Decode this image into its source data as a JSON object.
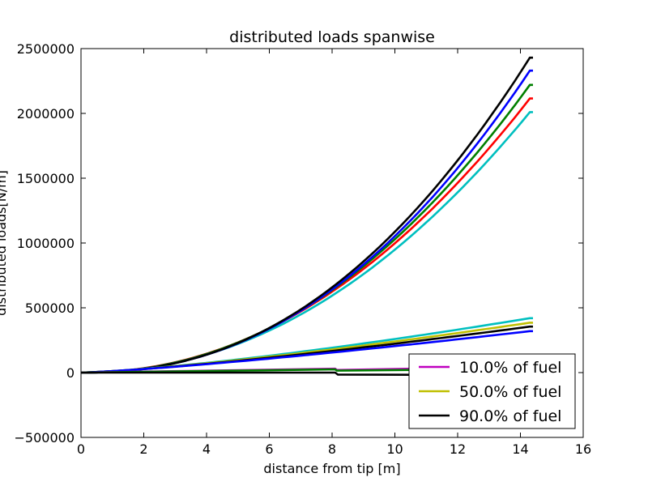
{
  "chart_data": {
    "type": "line",
    "title": "distributed loads spanwise",
    "xlabel": "distance from tip [m]",
    "ylabel": "distributed loads[N/m]",
    "xlim": [
      0,
      16
    ],
    "ylim": [
      -500000,
      2500000
    ],
    "xticks": [
      "0",
      "2",
      "4",
      "6",
      "8",
      "10",
      "12",
      "14",
      "16"
    ],
    "yticks": [
      "−500000",
      "0",
      "500000",
      "1000000",
      "1500000",
      "2000000",
      "2500000"
    ],
    "xtick_values": [
      0,
      2,
      4,
      6,
      8,
      10,
      12,
      14,
      16
    ],
    "ytick_values": [
      -500000,
      0,
      500000,
      1000000,
      1500000,
      2000000,
      2500000
    ],
    "legend_position": "lower-right",
    "series": [
      {
        "color": "#00bfbf",
        "kind": "quad",
        "end": 2010000,
        "p": 2.1
      },
      {
        "color": "#ff0000",
        "kind": "quad",
        "end": 2115000,
        "p": 2.1
      },
      {
        "color": "#007f00",
        "kind": "quad",
        "end": 2220000,
        "p": 2.15
      },
      {
        "color": "#0000ff",
        "kind": "quad",
        "end": 2330000,
        "p": 2.22
      },
      {
        "color": "#000000",
        "kind": "quad",
        "end": 2430000,
        "p": 2.25
      },
      {
        "color": "#00bfbf",
        "kind": "lin",
        "end": 420000,
        "p": 1.35
      },
      {
        "color": "#bfbf00",
        "kind": "lin",
        "end": 385000,
        "p": 1.32
      },
      {
        "color": "#000000",
        "kind": "lin",
        "end": 355000,
        "p": 1.3
      },
      {
        "color": "#0000ff",
        "kind": "lin",
        "end": 320000,
        "p": 1.25
      },
      {
        "color": "#bf00bf",
        "kind": "flat",
        "values": [
          [
            0,
            0
          ],
          [
            8.1,
            30000
          ],
          [
            8.15,
            20000
          ],
          [
            14.3,
            45000
          ]
        ]
      },
      {
        "color": "#007f00",
        "kind": "flat",
        "values": [
          [
            0,
            0
          ],
          [
            8.1,
            25000
          ],
          [
            8.15,
            15000
          ],
          [
            14.3,
            30000
          ]
        ]
      },
      {
        "color": "#000000",
        "kind": "flat",
        "values": [
          [
            0,
            0
          ],
          [
            8.1,
            0
          ],
          [
            8.18,
            -15000
          ],
          [
            14.3,
            -20000
          ]
        ]
      }
    ],
    "legend": [
      {
        "label": "10.0% of fuel",
        "color": "#bf00bf"
      },
      {
        "label": "50.0% of fuel",
        "color": "#bfbf00"
      },
      {
        "label": "90.0% of fuel",
        "color": "#000000"
      }
    ]
  }
}
